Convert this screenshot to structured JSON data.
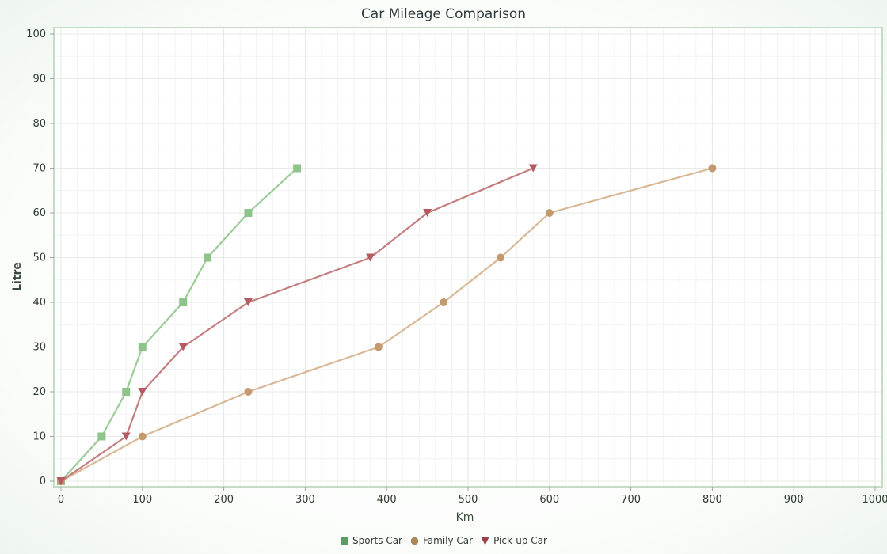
{
  "chart_data": {
    "type": "line",
    "title": "Car Mileage Comparison",
    "xlabel": "Km",
    "ylabel": "Litre",
    "xlim": [
      0,
      1000
    ],
    "ylim": [
      0,
      100
    ],
    "xticks": [
      0,
      100,
      200,
      300,
      400,
      500,
      600,
      700,
      800,
      900,
      1000
    ],
    "yticks": [
      0,
      10,
      20,
      30,
      40,
      50,
      60,
      70,
      80,
      90,
      100
    ],
    "grid": true,
    "legend_position": "bottom",
    "series": [
      {
        "name": "Sports Car",
        "color": "#9dcb98",
        "marker": "square",
        "marker_color": "#8ec48a",
        "points": [
          [
            0,
            0
          ],
          [
            50,
            10
          ],
          [
            80,
            20
          ],
          [
            100,
            30
          ],
          [
            150,
            40
          ],
          [
            180,
            50
          ],
          [
            230,
            60
          ],
          [
            290,
            70
          ]
        ]
      },
      {
        "name": "Family Car",
        "color": "#d8b896",
        "marker": "circle",
        "marker_color": "#c29a6e",
        "points": [
          [
            0,
            0
          ],
          [
            100,
            10
          ],
          [
            230,
            20
          ],
          [
            390,
            30
          ],
          [
            470,
            40
          ],
          [
            540,
            50
          ],
          [
            600,
            60
          ],
          [
            800,
            70
          ]
        ]
      },
      {
        "name": "Pick-up Car",
        "color": "#c47e80",
        "marker": "triangle-down",
        "marker_color": "#b45a60",
        "points": [
          [
            0,
            0
          ],
          [
            80,
            10
          ],
          [
            100,
            20
          ],
          [
            150,
            30
          ],
          [
            230,
            40
          ],
          [
            380,
            50
          ],
          [
            450,
            60
          ],
          [
            580,
            70
          ]
        ]
      }
    ]
  }
}
